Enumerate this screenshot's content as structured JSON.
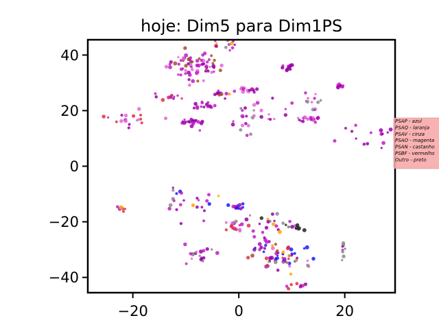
{
  "chart_data": {
    "type": "scatter",
    "title": "hoje: Dim5 para Dim1PS",
    "xlabel": "",
    "ylabel": "",
    "xlim": [
      -28.5,
      29.5
    ],
    "ylim": [
      -45.5,
      45.5
    ],
    "xticks": [
      -20,
      0,
      20
    ],
    "yticks": [
      -40,
      -20,
      0,
      20,
      40
    ],
    "xtick_labels": [
      "−20",
      "0",
      "20"
    ],
    "ytick_labels": [
      "−40",
      "−20",
      "0",
      "20",
      "40"
    ],
    "grid": false,
    "legend_position": "right, clipped at figure edge",
    "legend": [
      {
        "label": "PSAP - azul",
        "color": "#0000ff"
      },
      {
        "label": "PSAQ - laranja",
        "color": "#ffa500"
      },
      {
        "label": "PSAV - cinza",
        "color": "#808080"
      },
      {
        "label": "PSAO - magenta",
        "color": "#c000c0"
      },
      {
        "label": "PSAN - castanho",
        "color": "#a52a2a"
      },
      {
        "label": "PSBF - vermelho",
        "color": "#ff0000"
      },
      {
        "label": "Outro - preto",
        "color": "#000000"
      }
    ],
    "legend_box_color": "#f8aaaa",
    "clusters": [
      {
        "x": -8.5,
        "y": 36,
        "sx": 2.6,
        "sy": 2.6,
        "n": 70,
        "colors": [
          "magenta",
          "magenta",
          "magenta",
          "pink",
          "purple",
          "brown",
          "gray"
        ]
      },
      {
        "x": -2,
        "y": 44,
        "sx": 1.6,
        "sy": 1.0,
        "n": 14,
        "colors": [
          "magenta",
          "magenta",
          "orange",
          "purple",
          "gray"
        ]
      },
      {
        "x": 9,
        "y": 35.5,
        "sx": 0.7,
        "sy": 0.6,
        "n": 12,
        "colors": [
          "magenta",
          "purple",
          "purple"
        ]
      },
      {
        "x": 2,
        "y": 27.5,
        "sx": 1.3,
        "sy": 0.6,
        "n": 14,
        "colors": [
          "magenta",
          "purple",
          "pink"
        ]
      },
      {
        "x": -3.5,
        "y": 26,
        "sx": 1.0,
        "sy": 0.8,
        "n": 12,
        "colors": [
          "magenta",
          "purple",
          "brown",
          "orange"
        ]
      },
      {
        "x": -13,
        "y": 25,
        "sx": 1.3,
        "sy": 0.5,
        "n": 12,
        "colors": [
          "magenta",
          "pink",
          "red",
          "purple"
        ]
      },
      {
        "x": -6,
        "y": 21.5,
        "sx": 1.2,
        "sy": 0.8,
        "n": 14,
        "colors": [
          "magenta",
          "purple"
        ]
      },
      {
        "x": 3.5,
        "y": 17.5,
        "sx": 3.2,
        "sy": 3.0,
        "n": 30,
        "colors": [
          "magenta",
          "purple",
          "pink",
          "gray"
        ]
      },
      {
        "x": -8.5,
        "y": 16,
        "sx": 1.0,
        "sy": 0.6,
        "n": 20,
        "colors": [
          "purple",
          "purple",
          "magenta"
        ]
      },
      {
        "x": 13.5,
        "y": 23,
        "sx": 1.6,
        "sy": 1.5,
        "n": 12,
        "colors": [
          "magenta",
          "pink",
          "gray"
        ]
      },
      {
        "x": 13,
        "y": 17,
        "sx": 1.0,
        "sy": 0.6,
        "n": 18,
        "colors": [
          "magenta",
          "purple",
          "pink"
        ]
      },
      {
        "x": 19,
        "y": 29,
        "sx": 0.6,
        "sy": 0.6,
        "n": 10,
        "colors": [
          "purple",
          "magenta"
        ]
      },
      {
        "x": -21,
        "y": 18,
        "sx": 2.2,
        "sy": 2.0,
        "n": 18,
        "colors": [
          "magenta",
          "pink",
          "red",
          "purple"
        ]
      },
      {
        "x": 24,
        "y": 10,
        "sx": 4.0,
        "sy": 2.5,
        "n": 16,
        "colors": [
          "purple",
          "magenta",
          "purple"
        ]
      },
      {
        "x": -22.5,
        "y": -15.5,
        "sx": 0.5,
        "sy": 0.5,
        "n": 7,
        "colors": [
          "magenta",
          "orange",
          "red",
          "gray"
        ]
      },
      {
        "x": -12,
        "y": -11.5,
        "sx": 1.2,
        "sy": 2.5,
        "n": 12,
        "colors": [
          "blue",
          "purple",
          "magenta",
          "gray"
        ]
      },
      {
        "x": -7.5,
        "y": -13,
        "sx": 1.5,
        "sy": 3.0,
        "n": 12,
        "colors": [
          "magenta",
          "orange",
          "purple",
          "blue"
        ]
      },
      {
        "x": 0,
        "y": -14.5,
        "sx": 0.7,
        "sy": 0.5,
        "n": 14,
        "colors": [
          "blue",
          "blue",
          "purple",
          "magenta"
        ]
      },
      {
        "x": -1,
        "y": -21,
        "sx": 1.2,
        "sy": 1.0,
        "n": 14,
        "colors": [
          "magenta",
          "purple",
          "red",
          "pink"
        ]
      },
      {
        "x": 5.5,
        "y": -20,
        "sx": 2.6,
        "sy": 2.0,
        "n": 22,
        "colors": [
          "magenta",
          "purple",
          "gray",
          "orange",
          "black"
        ]
      },
      {
        "x": 10,
        "y": -22,
        "sx": 1.0,
        "sy": 0.6,
        "n": 10,
        "colors": [
          "gray",
          "gray",
          "black",
          "purple"
        ]
      },
      {
        "x": 8,
        "y": -33,
        "sx": 3.0,
        "sy": 2.6,
        "n": 60,
        "colors": [
          "magenta",
          "pink",
          "purple",
          "brown",
          "gray",
          "orange",
          "red",
          "blue"
        ]
      },
      {
        "x": 4.5,
        "y": -27,
        "sx": 1.0,
        "sy": 1.5,
        "n": 10,
        "colors": [
          "blue",
          "purple",
          "magenta"
        ]
      },
      {
        "x": -7.5,
        "y": -31,
        "sx": 2.0,
        "sy": 2.5,
        "n": 18,
        "colors": [
          "magenta",
          "purple",
          "pink",
          "gray"
        ]
      },
      {
        "x": 19.5,
        "y": -30,
        "sx": 0.4,
        "sy": 1.3,
        "n": 8,
        "colors": [
          "purple",
          "magenta",
          "gray"
        ]
      },
      {
        "x": 10.5,
        "y": -43,
        "sx": 1.3,
        "sy": 0.5,
        "n": 8,
        "colors": [
          "purple",
          "red",
          "magenta"
        ]
      }
    ]
  }
}
